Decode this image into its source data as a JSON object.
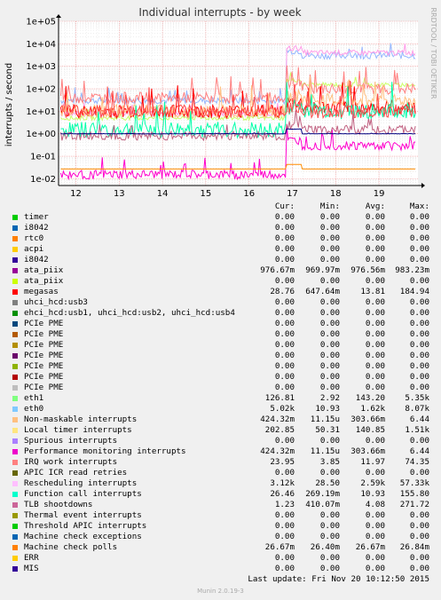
{
  "chart_data": {
    "type": "line",
    "title": "Individual interrupts - by week",
    "ylabel": "interrupts / second",
    "yscale": "log",
    "ylim": [
      0.005,
      100000
    ],
    "yticks": [
      {
        "v": 0.01,
        "label": "1e-02"
      },
      {
        "v": 0.1,
        "label": "1e-01"
      },
      {
        "v": 1,
        "label": "1e+00"
      },
      {
        "v": 10,
        "label": "1e+01"
      },
      {
        "v": 100,
        "label": "1e+02"
      },
      {
        "v": 1000,
        "label": "1e+03"
      },
      {
        "v": 10000,
        "label": "1e+04"
      },
      {
        "v": 100000,
        "label": "1e+05"
      }
    ],
    "xlim": [
      11.6,
      19.9
    ],
    "xticks": [
      "12",
      "13",
      "14",
      "15",
      "16",
      "17",
      "18",
      "19"
    ],
    "grid": true,
    "side_label": "RRDTOOL / TOBI OETIKER",
    "series": [
      {
        "name": "eth0",
        "color": "#94b6ff",
        "before": 30,
        "after": 3000,
        "noise": 0.15
      },
      {
        "name": "Rescheduling interrupts",
        "color": "#ff9ce8",
        "before": 8,
        "after": 4000,
        "noise": 0.12
      },
      {
        "name": "eth1",
        "color": "#ccff66",
        "before": 5,
        "after": 150,
        "noise": 0.1
      },
      {
        "name": "Local timer interrupts",
        "color": "#ff8080",
        "before": 40,
        "after": 100,
        "noise": 0.25
      },
      {
        "name": "megasas",
        "color": "#ff0000",
        "before": 10,
        "after": 15,
        "noise": 0.3
      },
      {
        "name": "Non-maskable interrupts",
        "color": "#ffc081",
        "before": 10,
        "after": 30,
        "noise": 0.3
      },
      {
        "name": "Performance monitoring interrupts",
        "color": "#ff00cc",
        "before": 0.015,
        "after": 0.3,
        "noise": 0.2
      },
      {
        "name": "Function call interrupts",
        "color": "#00ffaa",
        "before": 1.5,
        "after": 10,
        "noise": 0.35
      },
      {
        "name": "IRQ work interrupts",
        "color": "#ff4a4a",
        "before": 10,
        "after": 10,
        "noise": 0.3
      },
      {
        "name": "TLB shootdowns",
        "color": "#c06080",
        "before": 0.8,
        "after": 1.5,
        "noise": 0.2
      },
      {
        "name": "ata_piix",
        "color": "#000080",
        "before": 1,
        "after": 1,
        "noise": 0.01
      },
      {
        "name": "Machine check polls",
        "color": "#ff8c00",
        "before": 0.027,
        "after": 0.027,
        "noise": 0.0
      }
    ]
  },
  "legend": {
    "headers": [
      "Cur:",
      "Min:",
      "Avg:",
      "Max:"
    ],
    "rows": [
      {
        "name": "timer",
        "color": "#00cc00",
        "cur": "0.00",
        "min": "0.00",
        "avg": "0.00",
        "max": "0.00"
      },
      {
        "name": "i8042",
        "color": "#0066b3",
        "cur": "0.00",
        "min": "0.00",
        "avg": "0.00",
        "max": "0.00"
      },
      {
        "name": "rtc0",
        "color": "#ff8000",
        "cur": "0.00",
        "min": "0.00",
        "avg": "0.00",
        "max": "0.00"
      },
      {
        "name": "acpi",
        "color": "#ffcc00",
        "cur": "0.00",
        "min": "0.00",
        "avg": "0.00",
        "max": "0.00"
      },
      {
        "name": "i8042",
        "color": "#330099",
        "cur": "0.00",
        "min": "0.00",
        "avg": "0.00",
        "max": "0.00"
      },
      {
        "name": "ata_piix",
        "color": "#990099",
        "cur": "976.67m",
        "min": "969.97m",
        "avg": "976.56m",
        "max": "983.23m"
      },
      {
        "name": "ata_piix",
        "color": "#ccff00",
        "cur": "0.00",
        "min": "0.00",
        "avg": "0.00",
        "max": "0.00"
      },
      {
        "name": "megasas",
        "color": "#ff0000",
        "cur": "28.76",
        "min": "647.64m",
        "avg": "13.81",
        "max": "184.94"
      },
      {
        "name": "uhci_hcd:usb3",
        "color": "#808080",
        "cur": "0.00",
        "min": "0.00",
        "avg": "0.00",
        "max": "0.00"
      },
      {
        "name": "ehci_hcd:usb1, uhci_hcd:usb2, uhci_hcd:usb4",
        "color": "#008f00",
        "cur": "0.00",
        "min": "0.00",
        "avg": "0.00",
        "max": "0.00"
      },
      {
        "name": "PCIe PME",
        "color": "#00487d",
        "cur": "0.00",
        "min": "0.00",
        "avg": "0.00",
        "max": "0.00"
      },
      {
        "name": "PCIe PME",
        "color": "#b35a00",
        "cur": "0.00",
        "min": "0.00",
        "avg": "0.00",
        "max": "0.00"
      },
      {
        "name": "PCIe PME",
        "color": "#b38f00",
        "cur": "0.00",
        "min": "0.00",
        "avg": "0.00",
        "max": "0.00"
      },
      {
        "name": "PCIe PME",
        "color": "#6b006b",
        "cur": "0.00",
        "min": "0.00",
        "avg": "0.00",
        "max": "0.00"
      },
      {
        "name": "PCIe PME",
        "color": "#8fb300",
        "cur": "0.00",
        "min": "0.00",
        "avg": "0.00",
        "max": "0.00"
      },
      {
        "name": "PCIe PME",
        "color": "#b30000",
        "cur": "0.00",
        "min": "0.00",
        "avg": "0.00",
        "max": "0.00"
      },
      {
        "name": "PCIe PME",
        "color": "#bebebe",
        "cur": "0.00",
        "min": "0.00",
        "avg": "0.00",
        "max": "0.00"
      },
      {
        "name": "eth1",
        "color": "#80ff80",
        "cur": "126.81",
        "min": "2.92",
        "avg": "143.20",
        "max": "5.35k"
      },
      {
        "name": "eth0",
        "color": "#80c9ff",
        "cur": "5.02k",
        "min": "10.93",
        "avg": "1.62k",
        "max": "8.07k"
      },
      {
        "name": "Non-maskable interrupts",
        "color": "#ffc080",
        "cur": "424.32m",
        "min": "11.15u",
        "avg": "303.66m",
        "max": "6.44"
      },
      {
        "name": "Local timer interrupts",
        "color": "#ffe680",
        "cur": "202.85",
        "min": "50.31",
        "avg": "140.85",
        "max": "1.51k"
      },
      {
        "name": "Spurious interrupts",
        "color": "#aa80ff",
        "cur": "0.00",
        "min": "0.00",
        "avg": "0.00",
        "max": "0.00"
      },
      {
        "name": "Performance monitoring interrupts",
        "color": "#ee00cc",
        "cur": "424.32m",
        "min": "11.15u",
        "avg": "303.66m",
        "max": "6.44"
      },
      {
        "name": "IRQ work interrupts",
        "color": "#ff8080",
        "cur": "23.95",
        "min": "3.85",
        "avg": "11.97",
        "max": "74.35"
      },
      {
        "name": "APIC ICR read retries",
        "color": "#666600",
        "cur": "0.00",
        "min": "0.00",
        "avg": "0.00",
        "max": "0.00"
      },
      {
        "name": "Rescheduling interrupts",
        "color": "#ffbfff",
        "cur": "3.12k",
        "min": "28.50",
        "avg": "2.59k",
        "max": "57.33k"
      },
      {
        "name": "Function call interrupts",
        "color": "#00ffcc",
        "cur": "26.46",
        "min": "269.19m",
        "avg": "10.93",
        "max": "155.80"
      },
      {
        "name": "TLB shootdowns",
        "color": "#cc6699",
        "cur": "1.23",
        "min": "410.07m",
        "avg": "4.08",
        "max": "271.72"
      },
      {
        "name": "Thermal event interrupts",
        "color": "#999900",
        "cur": "0.00",
        "min": "0.00",
        "avg": "0.00",
        "max": "0.00"
      },
      {
        "name": "Threshold APIC interrupts",
        "color": "#00cc00",
        "cur": "0.00",
        "min": "0.00",
        "avg": "0.00",
        "max": "0.00"
      },
      {
        "name": "Machine check exceptions",
        "color": "#0066b3",
        "cur": "0.00",
        "min": "0.00",
        "avg": "0.00",
        "max": "0.00"
      },
      {
        "name": "Machine check polls",
        "color": "#ff8000",
        "cur": "26.67m",
        "min": "26.40m",
        "avg": "26.67m",
        "max": "26.84m"
      },
      {
        "name": "ERR",
        "color": "#ffcc00",
        "cur": "0.00",
        "min": "0.00",
        "avg": "0.00",
        "max": "0.00"
      },
      {
        "name": "MIS",
        "color": "#330099",
        "cur": "0.00",
        "min": "0.00",
        "avg": "0.00",
        "max": "0.00"
      }
    ]
  },
  "footer": {
    "last_update": "Last update:  Fri Nov 20 10:12:50 2015",
    "version": "Munin 2.0.19-3"
  }
}
